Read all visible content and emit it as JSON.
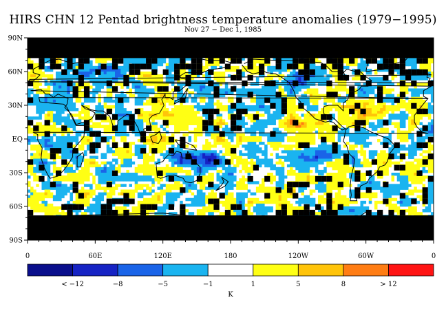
{
  "title": "HIRS CHN 12 Pentad brightness temperature anomalies (1979−1995)",
  "subtitle": "Nov 27 − Dec 1, 1985",
  "y_axis": {
    "labels": [
      "90N",
      "60N",
      "30N",
      "EQ",
      "30S",
      "60S",
      "90S"
    ]
  },
  "x_axis": {
    "labels": [
      "0",
      "60E",
      "120E",
      "180",
      "120W",
      "60W",
      "0"
    ]
  },
  "colorbar": {
    "colors": [
      "#0a0f8c",
      "#1623c4",
      "#1a64e8",
      "#1ab4f0",
      "#ffffff",
      "#ffff14",
      "#ffc40a",
      "#ff7d14",
      "#ff1414"
    ],
    "labels": [
      "< −12",
      "−8",
      "−5",
      "−1",
      "1",
      "5",
      "8",
      "> 12"
    ],
    "unit": "K"
  },
  "map": {
    "missing_color": "#000000",
    "land_outline_color": "#000000"
  }
}
